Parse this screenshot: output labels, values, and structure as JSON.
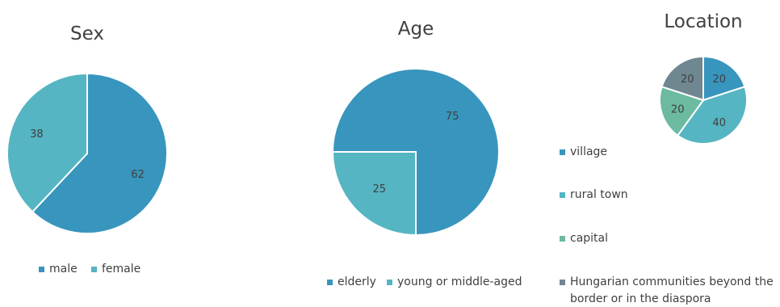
{
  "colors": {
    "blue": "#3895bd",
    "teal": "#55b5c3",
    "green": "#6cbaa0",
    "gray": "#6f8790"
  },
  "chart_data": [
    {
      "type": "pie",
      "title": "Sex",
      "slices": [
        {
          "name": "male",
          "value": 62,
          "color": "#3895bd"
        },
        {
          "name": "female",
          "value": 38,
          "color": "#55b5c3"
        }
      ],
      "legend_position": "bottom"
    },
    {
      "type": "pie",
      "title": "Age",
      "slices": [
        {
          "name": "elderly",
          "value": 75,
          "color": "#3895bd"
        },
        {
          "name": "young or middle-aged",
          "value": 25,
          "color": "#55b5c3"
        }
      ],
      "legend_position": "bottom"
    },
    {
      "type": "pie",
      "title": "Location",
      "slices": [
        {
          "name": "village",
          "value": 20,
          "color": "#3895bd"
        },
        {
          "name": "rural town",
          "value": 40,
          "color": "#55b5c3"
        },
        {
          "name": "capital",
          "value": 20,
          "color": "#6cbaa0"
        },
        {
          "name": "Hungarian communities beyond the border or in the diaspora",
          "value": 20,
          "color": "#6f8790"
        }
      ],
      "legend_position": "bottom"
    }
  ]
}
